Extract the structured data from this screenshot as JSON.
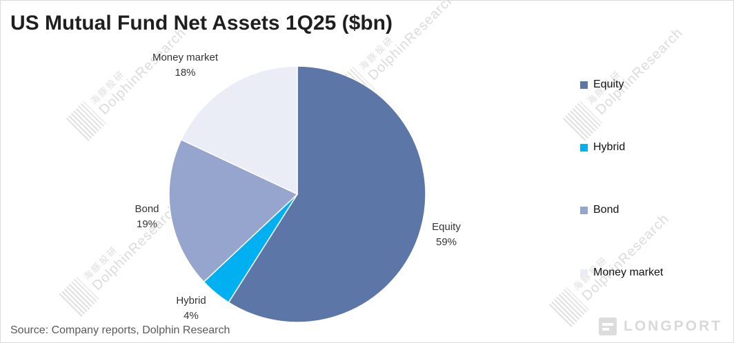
{
  "title": "US Mutual Fund Net Assets 1Q25 ($bn)",
  "source_text": "Source:  Company reports, Dolphin Research",
  "watermark": {
    "line_cn": "海豚投研",
    "line_en": "DolphinResearch",
    "brand": "LONGPORT"
  },
  "chart_data": {
    "type": "pie",
    "title": "US Mutual Fund Net Assets 1Q25 ($bn)",
    "categories": [
      "Equity",
      "Hybrid",
      "Bond",
      "Money market"
    ],
    "values": [
      59,
      4,
      19,
      18
    ],
    "unit": "percent of total",
    "colors": [
      "#5b76a7",
      "#00b0f0",
      "#95a5ce",
      "#eaedf5"
    ],
    "start_angle_deg": -90,
    "direction": "clockwise",
    "legend_position": "right",
    "slice_labels": [
      {
        "name": "Equity",
        "value": "59%"
      },
      {
        "name": "Hybrid",
        "value": "4%"
      },
      {
        "name": "Bond",
        "value": "19%"
      },
      {
        "name": "Money market",
        "value": "18%"
      }
    ]
  },
  "legend": {
    "items": [
      {
        "label": "Equity"
      },
      {
        "label": "Hybrid"
      },
      {
        "label": "Bond"
      },
      {
        "label": "Money market"
      }
    ]
  }
}
